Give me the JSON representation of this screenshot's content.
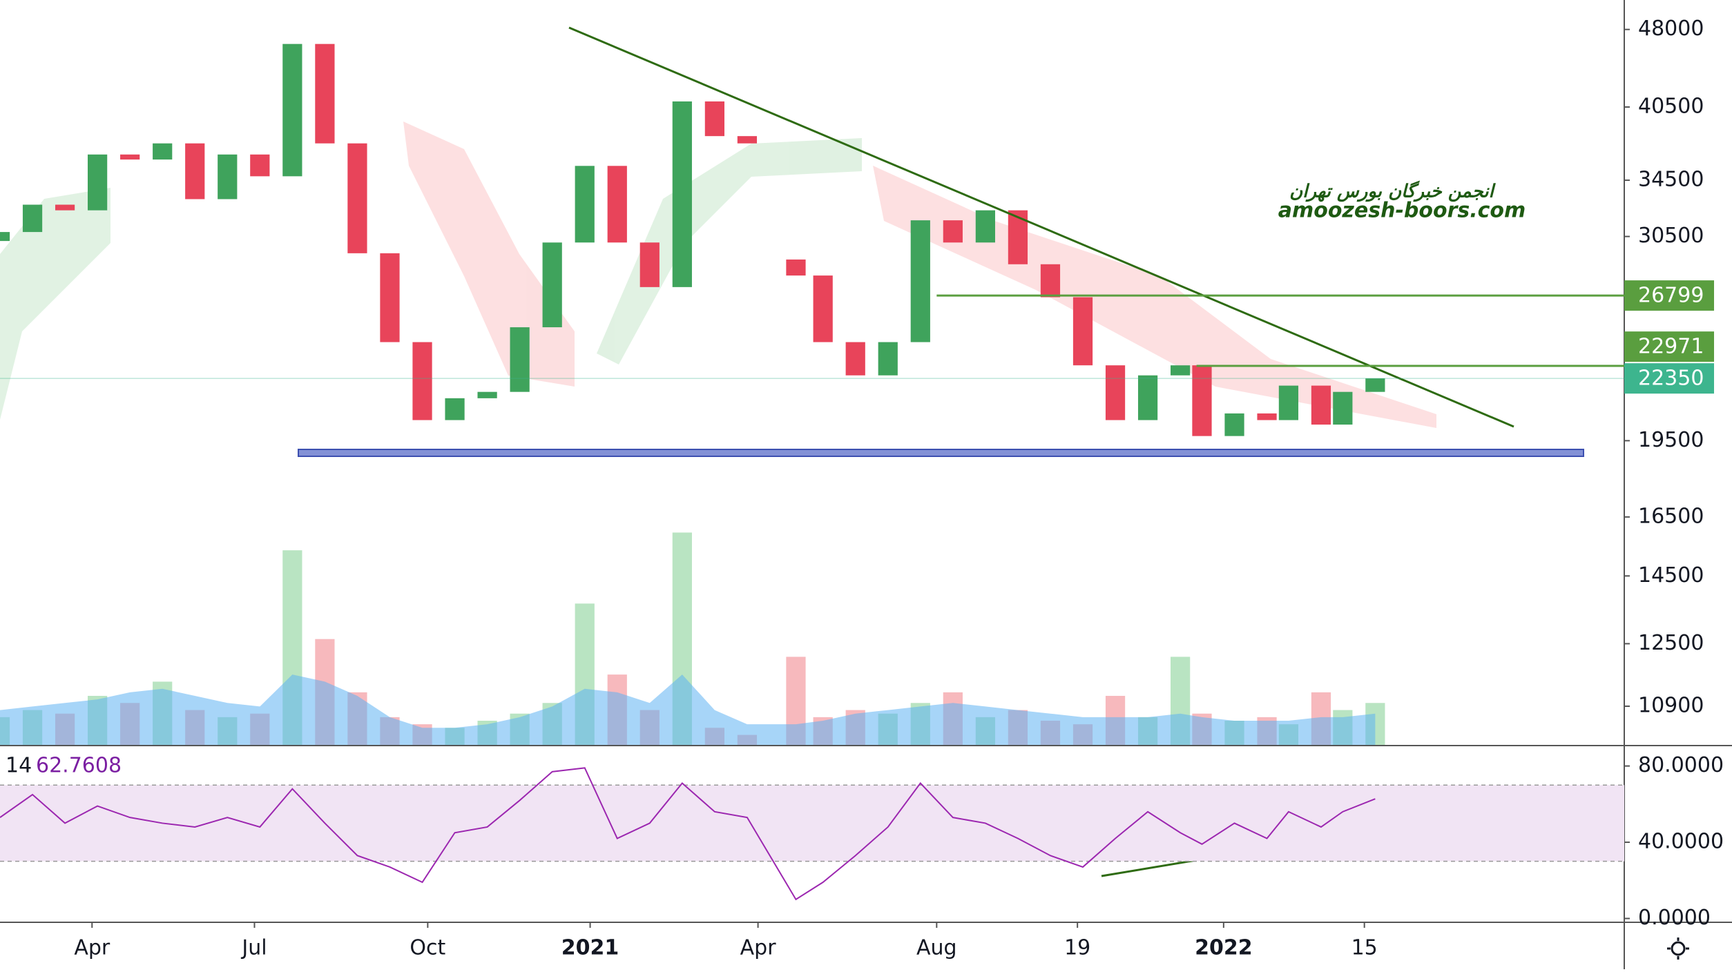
{
  "chart_data": [
    {
      "type": "candlestick",
      "log_scale": true,
      "x": [
        0,
        6,
        12,
        18,
        24,
        30,
        36,
        42,
        48,
        54,
        60,
        66,
        72,
        78,
        84,
        90,
        96,
        102,
        108,
        114,
        120,
        126,
        132,
        138,
        147,
        152,
        158,
        164,
        170,
        176,
        182,
        188,
        194,
        200,
        206,
        212,
        218,
        222,
        228,
        234,
        238,
        244,
        248,
        254
      ],
      "open": [
        30200,
        30800,
        32700,
        32300,
        36500,
        36100,
        37400,
        33100,
        36500,
        34800,
        46500,
        37400,
        29400,
        24200,
        20400,
        21400,
        21700,
        25000,
        30100,
        35600,
        30100,
        27300,
        41000,
        38000,
        29000,
        28000,
        24200,
        22500,
        24200,
        31600,
        30100,
        32300,
        28700,
        26700,
        23000,
        20400,
        22500,
        23000,
        19700,
        20700,
        20400,
        22000,
        20200,
        21700
      ],
      "close": [
        30800,
        32700,
        32300,
        36500,
        36100,
        37400,
        33100,
        36500,
        34800,
        46500,
        37400,
        29400,
        24200,
        20400,
        21400,
        21700,
        25000,
        30100,
        35600,
        30100,
        27300,
        41000,
        38000,
        37400,
        28000,
        24200,
        22500,
        24200,
        31600,
        30100,
        32300,
        28700,
        26700,
        23000,
        20400,
        22500,
        23000,
        19700,
        20700,
        20400,
        22000,
        20200,
        21700,
        22350
      ],
      "up_color": "#3fa35c",
      "down_color": "#e8445a",
      "xlim": [
        0,
        300
      ],
      "xticks": [
        {
          "value": 17,
          "label": "Apr"
        },
        {
          "value": 47,
          "label": "Jul"
        },
        {
          "value": 79,
          "label": "Oct"
        },
        {
          "value": 109,
          "label": "2021"
        },
        {
          "value": 140,
          "label": "Apr"
        },
        {
          "value": 173,
          "label": "Aug"
        },
        {
          "value": 199,
          "label": "19"
        },
        {
          "value": 226,
          "label": "2022"
        },
        {
          "value": 252,
          "label": "15"
        }
      ],
      "ylim": [
        10000,
        51200
      ],
      "yticks": [
        48000,
        40500,
        34500,
        30500,
        19500,
        16500,
        14500,
        12500,
        10900
      ],
      "levels": [
        {
          "value": 26799,
          "from": 173,
          "color": "#5a9e3f"
        },
        {
          "value": 22971,
          "from": 221,
          "color": "#5a9e3f"
        },
        {
          "value": 22350,
          "from": 0,
          "color": "#3db58e"
        }
      ],
      "volume": {
        "values": [
          8,
          10,
          9,
          14,
          12,
          18,
          10,
          8,
          9,
          55,
          30,
          15,
          8,
          6,
          5,
          7,
          9,
          12,
          40,
          20,
          10,
          60,
          5,
          3,
          25,
          8,
          10,
          9,
          12,
          15,
          8,
          10,
          7,
          6,
          14,
          8,
          25,
          9,
          7,
          8,
          6,
          15,
          10,
          12
        ],
        "ma": [
          10,
          11,
          12,
          13,
          15,
          16,
          14,
          12,
          11,
          20,
          18,
          14,
          8,
          5,
          5,
          6,
          8,
          11,
          16,
          15,
          12,
          20,
          10,
          6,
          6,
          7,
          9,
          10,
          11,
          12,
          11,
          10,
          9,
          8,
          8,
          8,
          9,
          8,
          7,
          7,
          7,
          8,
          8,
          9
        ],
        "lim": [
          0,
          70
        ],
        "up_color": "#b9e4c2",
        "down_color": "#f7b9bd",
        "ma_color": "#5eb3f2"
      },
      "annotations": [
        "انجمن خبرگان بورس تهران",
        "amoozesh-boors.com"
      ]
    },
    {
      "type": "line",
      "length": 14,
      "x": [
        0,
        6,
        12,
        18,
        24,
        30,
        36,
        42,
        48,
        54,
        60,
        66,
        72,
        78,
        84,
        90,
        96,
        102,
        108,
        114,
        120,
        126,
        132,
        138,
        147,
        152,
        158,
        164,
        170,
        176,
        182,
        188,
        194,
        200,
        206,
        212,
        218,
        222,
        228,
        234,
        238,
        244,
        248,
        254
      ],
      "values": [
        53,
        65,
        50,
        59,
        53,
        50,
        48,
        53,
        48,
        68,
        50,
        33,
        27,
        19,
        45,
        48,
        62,
        77,
        79,
        42,
        50,
        71,
        56,
        53,
        10,
        19,
        33,
        48,
        71,
        53,
        50,
        42,
        33,
        27,
        42,
        56,
        45,
        39,
        50,
        42,
        56,
        48,
        56,
        62.7608
      ],
      "color": "#9c27b0",
      "band": [
        30,
        70
      ],
      "band_color": "#f1e4f4",
      "ylim": [
        -2,
        90
      ],
      "yticks": [
        {
          "value": 80,
          "label": "80.0000"
        },
        {
          "value": 40,
          "label": "40.0000"
        },
        {
          "value": 0,
          "label": "0.0000"
        }
      ]
    }
  ]
}
